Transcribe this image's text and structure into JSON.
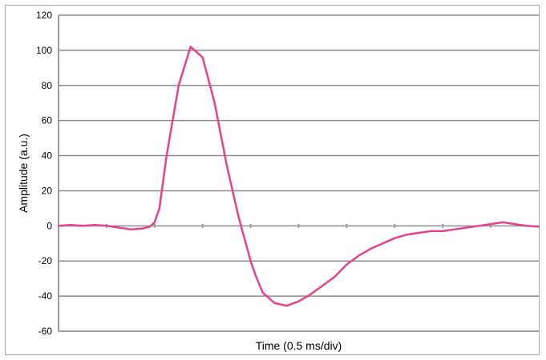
{
  "chart_data": {
    "type": "line",
    "title": "",
    "xlabel": "Time (0.5 ms/div)",
    "ylabel": "Amplitude (a.u.)",
    "ylim": [
      -60,
      120
    ],
    "y_ticks": [
      120,
      100,
      80,
      60,
      40,
      20,
      0,
      -20,
      -40,
      -60
    ],
    "y_tick_labels": [
      "120",
      "100",
      "80",
      "60",
      "40",
      "20",
      "0",
      "-20",
      "-40",
      "-60"
    ],
    "x_divisions": 10,
    "grid": true,
    "legend": "none",
    "series": [
      {
        "color": "#e8428c",
        "x": [
          0,
          0.25,
          0.5,
          0.75,
          1.0,
          1.25,
          1.5,
          1.75,
          1.9,
          2.0,
          2.1,
          2.25,
          2.5,
          2.75,
          3.0,
          3.25,
          3.5,
          3.75,
          3.9,
          4.0,
          4.1,
          4.25,
          4.5,
          4.75,
          5.0,
          5.25,
          5.5,
          5.75,
          6.0,
          6.25,
          6.5,
          6.75,
          7.0,
          7.25,
          7.5,
          7.75,
          8.0,
          8.25,
          8.5,
          8.75,
          9.0,
          9.25,
          9.5,
          9.75,
          10.0
        ],
        "y": [
          0,
          0.5,
          0,
          0.5,
          0,
          -1,
          -2,
          -1.5,
          -0.5,
          2,
          10,
          40,
          80,
          102,
          96,
          70,
          35,
          5,
          -10,
          -20,
          -28,
          -38,
          -44,
          -45.5,
          -43,
          -39,
          -34,
          -29,
          -22,
          -17,
          -13,
          -10,
          -7,
          -5,
          -4,
          -3,
          -3,
          -2,
          -1,
          0,
          1,
          2,
          1,
          0,
          -0.5
        ]
      }
    ]
  }
}
